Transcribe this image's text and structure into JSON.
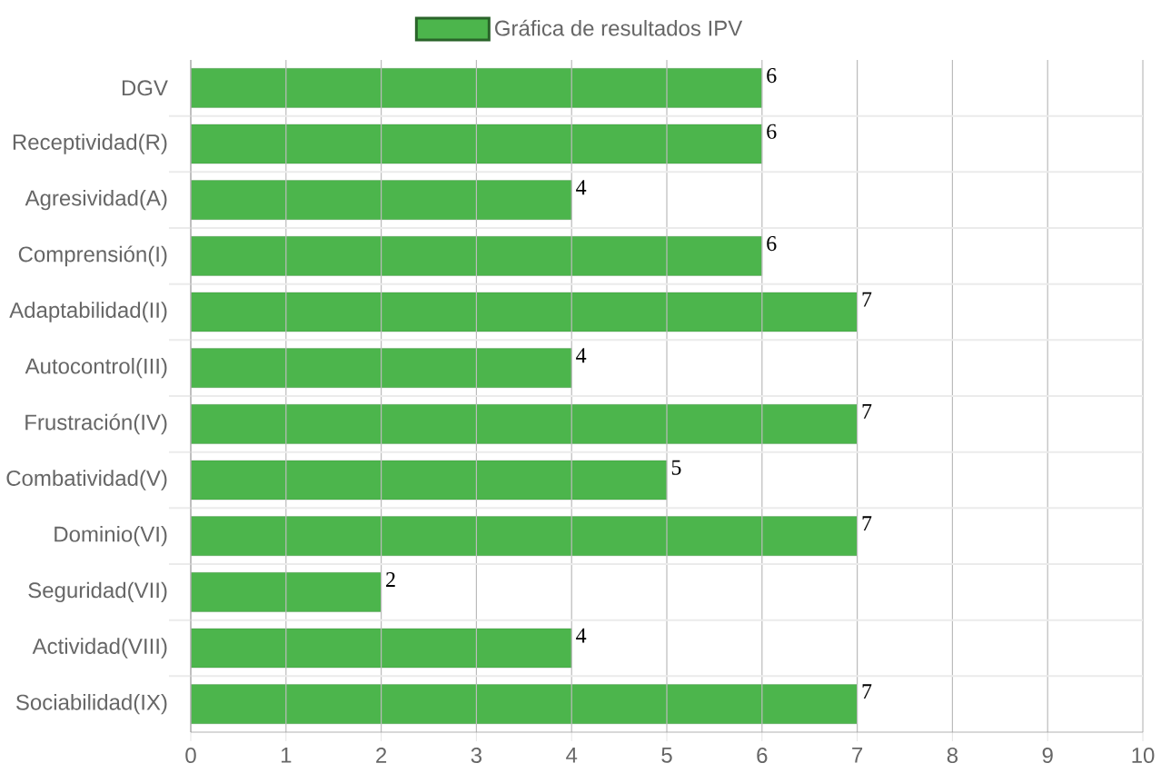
{
  "chart_data": {
    "type": "bar",
    "orientation": "horizontal",
    "categories": [
      "DGV",
      "Receptividad(R)",
      "Agresividad(A)",
      "Comprensión(I)",
      "Adaptabilidad(II)",
      "Autocontrol(III)",
      "Frustración(IV)",
      "Combatividad(V)",
      "Dominio(VI)",
      "Seguridad(VII)",
      "Actividad(VIII)",
      "Sociabilidad(IX)"
    ],
    "series": [
      {
        "name": "Gráfica de resultados IPV",
        "color": "#4cb54c",
        "values": [
          6,
          6,
          4,
          6,
          7,
          4,
          7,
          5,
          7,
          2,
          4,
          7
        ]
      }
    ],
    "xlim": [
      0,
      10
    ],
    "xticks": [
      0,
      1,
      2,
      3,
      4,
      5,
      6,
      7,
      8,
      9,
      10
    ],
    "grid": true,
    "legend": "top",
    "data_labels": true
  }
}
